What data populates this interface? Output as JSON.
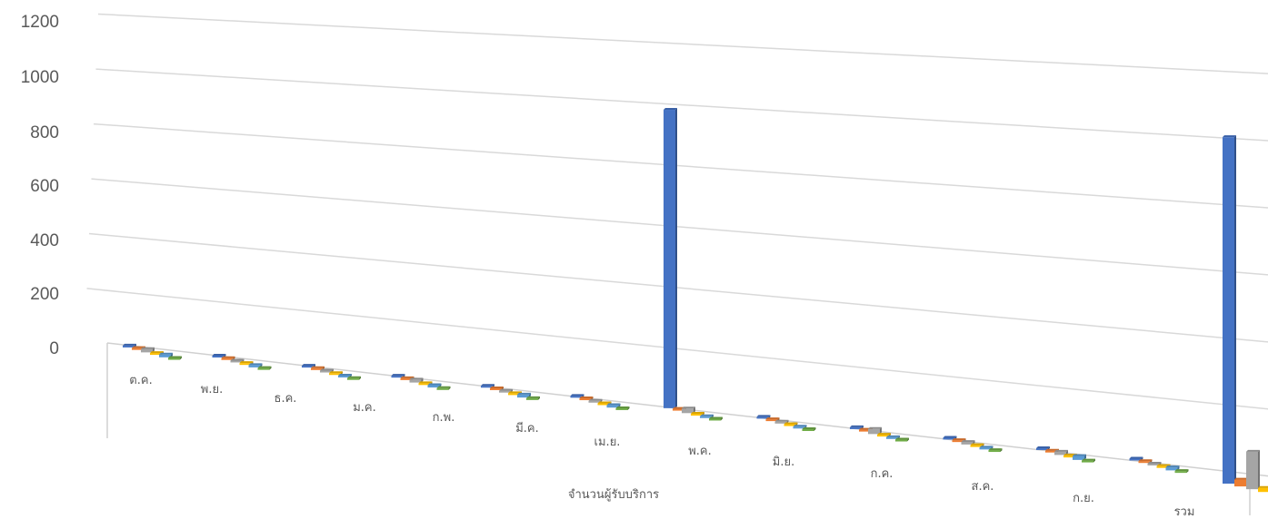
{
  "chart_data": {
    "type": "bar",
    "style": "3d-perspective-clustered",
    "title": "",
    "xlabel": "จำนวนผู้รับบริการ",
    "ylabel": "",
    "ylim": [
      0,
      1200
    ],
    "yticks": [
      "0",
      "200",
      "400",
      "600",
      "800",
      "1000",
      "1200"
    ],
    "grid": true,
    "categories": [
      "ต.ค.",
      "พ.ย.",
      "ธ.ค.",
      "ม.ค.",
      "ก.พ.",
      "มี.ค.",
      "เม.ย.",
      "พ.ค.",
      "มิ.ย.",
      "ก.ค.",
      "ส.ค.",
      "ก.ย.",
      "รวม"
    ],
    "series": [
      {
        "color": "#4472C4",
        "values": [
          3,
          2,
          2,
          2,
          3,
          3,
          980,
          2,
          3,
          3,
          3,
          3,
          1020
        ]
      },
      {
        "color": "#ED7D31",
        "values": [
          2,
          1,
          1,
          1,
          1,
          1,
          2,
          1,
          1,
          1,
          1,
          1,
          20
        ]
      },
      {
        "color": "#A5A5A5",
        "values": [
          12,
          2,
          3,
          10,
          2,
          6,
          15,
          6,
          16,
          8,
          10,
          4,
          110
        ]
      },
      {
        "color": "#FFC000",
        "values": [
          1,
          1,
          1,
          1,
          1,
          1,
          2,
          1,
          1,
          1,
          1,
          1,
          12
        ]
      },
      {
        "color": "#5B9BD5",
        "values": [
          10,
          8,
          4,
          8,
          10,
          8,
          5,
          4,
          5,
          4,
          12,
          9,
          75
        ]
      },
      {
        "color": "#70AD47",
        "values": [
          4,
          3,
          3,
          4,
          3,
          3,
          5,
          3,
          4,
          3,
          4,
          3,
          25
        ]
      }
    ]
  }
}
